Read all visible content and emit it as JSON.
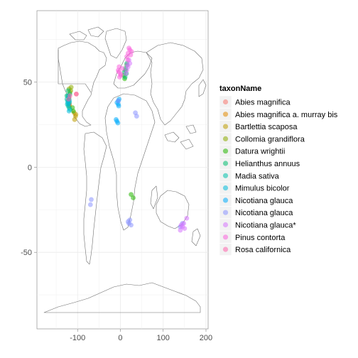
{
  "chart_data": {
    "type": "scatter",
    "xlim": [
      -195,
      205
    ],
    "ylim": [
      -95,
      92
    ],
    "x_ticks": [
      -100,
      0,
      100,
      200
    ],
    "x_tick_labels": [
      "-100",
      "0",
      "100",
      "200"
    ],
    "y_ticks": [
      50,
      0,
      -50
    ],
    "y_tick_labels": [
      "50",
      "0",
      "-50"
    ],
    "grid": true,
    "legend_title": "taxonName",
    "legend_position": "right",
    "series": [
      {
        "name": "Abies magnifica",
        "color": "#F8766D",
        "points": [
          [
            -120,
            41
          ],
          [
            -121,
            39
          ],
          [
            -119,
            37
          ],
          [
            -103,
            43
          ]
        ]
      },
      {
        "name": "Abies magnifica  a. murray bis",
        "color": "#E18A00",
        "points": [
          [
            -120,
            37
          ],
          [
            -119,
            36
          ]
        ]
      },
      {
        "name": "Bartlettia scaposa",
        "color": "#BE9C00",
        "points": [
          [
            -108,
            32
          ],
          [
            -105,
            30
          ],
          [
            -107,
            28
          ],
          [
            -104,
            31
          ]
        ]
      },
      {
        "name": "Collomia grandiflora",
        "color": "#8CAB00",
        "points": [
          [
            -118,
            44
          ],
          [
            -120,
            46
          ],
          [
            -115,
            47
          ],
          [
            -122,
            42
          ],
          [
            -116,
            45
          ]
        ]
      },
      {
        "name": "Datura wrightii",
        "color": "#24B700",
        "points": [
          [
            -110,
            33
          ],
          [
            -112,
            35
          ],
          [
            8,
            54
          ],
          [
            12,
            57
          ],
          [
            15,
            60
          ],
          [
            10,
            52
          ],
          [
            30,
            -18
          ],
          [
            25,
            -16
          ]
        ]
      },
      {
        "name": "Helianthus annuus",
        "color": "#00BE70",
        "points": [
          [
            -125,
            42
          ],
          [
            -120,
            40
          ],
          [
            -118,
            43
          ],
          [
            -122,
            45
          ],
          [
            12,
            58
          ],
          [
            15,
            61
          ],
          [
            9,
            56
          ],
          [
            11,
            53
          ],
          [
            14,
            55
          ]
        ]
      },
      {
        "name": "Madia sativa",
        "color": "#00C1AB",
        "points": [
          [
            -124,
            37
          ],
          [
            -122,
            36
          ],
          [
            -123,
            39
          ],
          [
            -121,
            41
          ],
          [
            -119,
            38
          ],
          [
            -125,
            40
          ],
          [
            -120,
            35
          ],
          [
            -118,
            34
          ]
        ]
      },
      {
        "name": "Mimulus bicolor",
        "color": "#00BBDA",
        "points": [
          [
            -123,
            38
          ],
          [
            -121,
            37
          ],
          [
            -120,
            33
          ],
          [
            -122,
            42
          ],
          [
            -119,
            39
          ]
        ]
      },
      {
        "name": "Nicotiana  glauca",
        "color": "#00ACFC",
        "points": [
          [
            -8,
            38
          ],
          [
            -5,
            37
          ],
          [
            -3,
            40
          ],
          [
            -10,
            28
          ],
          [
            -8,
            27
          ],
          [
            -6,
            26
          ],
          [
            -5,
            39
          ],
          [
            -4,
            36
          ]
        ]
      },
      {
        "name": "Nicotiana glauca",
        "color": "#8B93FF",
        "points": [
          [
            35,
            32
          ],
          [
            38,
            30
          ],
          [
            20,
            -33
          ],
          [
            25,
            -34
          ],
          [
            18,
            -32
          ],
          [
            22,
            -31
          ],
          [
            140,
            -35
          ],
          [
            145,
            -33
          ],
          [
            -68,
            -19
          ],
          [
            -70,
            -22
          ],
          [
            -5,
            39
          ]
        ]
      },
      {
        "name": "Nicotiana glauca*",
        "color": "#D575FE",
        "points": [
          [
            18,
            59
          ],
          [
            20,
            63
          ],
          [
            15,
            57
          ],
          [
            22,
            61
          ],
          [
            13,
            55
          ],
          [
            16,
            60
          ],
          [
            145,
            -35
          ],
          [
            150,
            -36
          ],
          [
            148,
            -33
          ],
          [
            140,
            -37
          ],
          [
            155,
            -30
          ],
          [
            142,
            -34
          ]
        ]
      },
      {
        "name": "Pinus contorta",
        "color": "#F962DD",
        "points": [
          [
            -5,
            57
          ],
          [
            0,
            55
          ],
          [
            -2,
            53
          ],
          [
            5,
            58
          ],
          [
            -3,
            59
          ],
          [
            15,
            65
          ],
          [
            18,
            67
          ],
          [
            22,
            69
          ],
          [
            20,
            70
          ],
          [
            24,
            66
          ],
          [
            26,
            68
          ],
          [
            17,
            63
          ],
          [
            -4,
            56
          ],
          [
            1,
            54
          ]
        ]
      },
      {
        "name": "Rosa californica",
        "color": "#FF65AC",
        "points": [
          [
            -118,
            42
          ],
          [
            -121,
            40
          ],
          [
            -103,
            43
          ]
        ]
      }
    ]
  }
}
